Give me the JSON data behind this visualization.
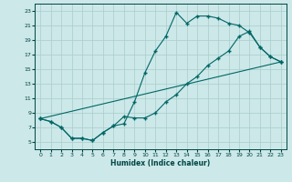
{
  "xlabel": "Humidex (Indice chaleur)",
  "bg_color": "#cce8e8",
  "grid_color": "#aacccc",
  "line_color": "#006666",
  "xlim": [
    -0.5,
    23.5
  ],
  "ylim": [
    4,
    24
  ],
  "xticks": [
    0,
    1,
    2,
    3,
    4,
    5,
    6,
    7,
    8,
    9,
    10,
    11,
    12,
    13,
    14,
    15,
    16,
    17,
    18,
    19,
    20,
    21,
    22,
    23
  ],
  "yticks": [
    5,
    7,
    9,
    11,
    13,
    15,
    17,
    19,
    21,
    23
  ],
  "line1_x": [
    0,
    1,
    2,
    3,
    4,
    5,
    6,
    7,
    8,
    9,
    10,
    11,
    12,
    13,
    14,
    15,
    16,
    17,
    18,
    19,
    20,
    21,
    22,
    23
  ],
  "line1_y": [
    8.2,
    7.8,
    7.0,
    5.5,
    5.5,
    5.2,
    6.3,
    7.2,
    7.5,
    10.5,
    14.5,
    17.5,
    19.5,
    22.8,
    21.3,
    22.3,
    22.3,
    22.0,
    21.3,
    21.0,
    20.0,
    18.0,
    16.7,
    16.0
  ],
  "line2_x": [
    0,
    1,
    2,
    3,
    4,
    5,
    6,
    7,
    8,
    9,
    10,
    11,
    12,
    13,
    14,
    15,
    16,
    17,
    18,
    19,
    20,
    21,
    22,
    23
  ],
  "line2_y": [
    8.2,
    7.8,
    7.0,
    5.5,
    5.5,
    5.2,
    6.3,
    7.2,
    8.5,
    8.3,
    8.3,
    9.0,
    10.5,
    11.5,
    13.0,
    14.0,
    15.5,
    16.5,
    17.5,
    19.5,
    20.2,
    18.0,
    16.7,
    16.0
  ],
  "line3_x": [
    0,
    23
  ],
  "line3_y": [
    8.2,
    16.0
  ]
}
